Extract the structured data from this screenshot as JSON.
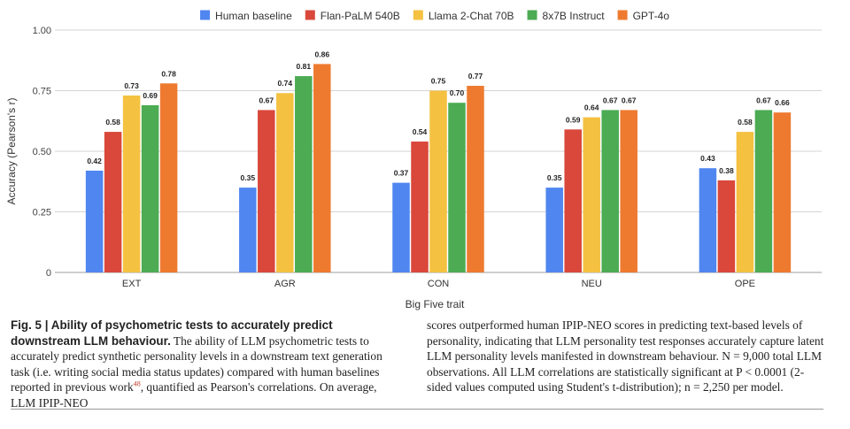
{
  "chart_data": {
    "type": "bar",
    "categories": [
      "EXT",
      "AGR",
      "CON",
      "NEU",
      "OPE"
    ],
    "series": [
      {
        "name": "Human baseline",
        "color": "#4F86F0",
        "values": [
          0.42,
          0.35,
          0.37,
          0.35,
          0.43
        ]
      },
      {
        "name": "Flan-PaLM 540B",
        "color": "#D9483B",
        "values": [
          0.58,
          0.67,
          0.54,
          0.59,
          0.38
        ]
      },
      {
        "name": "Llama 2-Chat 70B",
        "color": "#F4C141",
        "values": [
          0.73,
          0.74,
          0.75,
          0.64,
          0.58
        ]
      },
      {
        "name": "8x7B Instruct",
        "color": "#4CAB53",
        "values": [
          0.69,
          0.81,
          0.7,
          0.67,
          0.67
        ]
      },
      {
        "name": "GPT-4o",
        "color": "#EE7A30",
        "values": [
          0.78,
          0.86,
          0.77,
          0.67,
          0.66
        ]
      }
    ],
    "title": "",
    "xlabel": "Big Five trait",
    "ylabel": "Accuracy (Pearson's r)",
    "ylim": [
      0,
      1.0
    ],
    "yticks": [
      0,
      0.25,
      0.5,
      0.75,
      1.0
    ],
    "ytick_labels": [
      "0",
      "0.25",
      "0.50",
      "0.75",
      "1.00"
    ],
    "grid": true,
    "legend_position": "top"
  },
  "caption": {
    "fig_number": "Fig. 5 |",
    "fig_title": "Ability of psychometric tests to accurately predict downstream LLM behaviour.",
    "text_part1": "The ability of LLM psychometric tests to accurately predict synthetic personality levels in a downstream text generation task (i.e. writing social media status updates) compared with human baselines reported in previous work",
    "ref": "48",
    "text_part2": ", quantified as Pearson's correlations. On average, LLM IPIP-NEO",
    "text_right": "scores outperformed human IPIP-NEO scores in predicting text-based levels of personality, indicating that LLM personality test responses accurately capture latent LLM personality levels manifested in downstream behaviour. N = 9,000 total LLM observations. All LLM correlations are statistically significant at P < 0.0001 (2-sided values computed using Student's t-distribution); n = 2,250 per model."
  }
}
